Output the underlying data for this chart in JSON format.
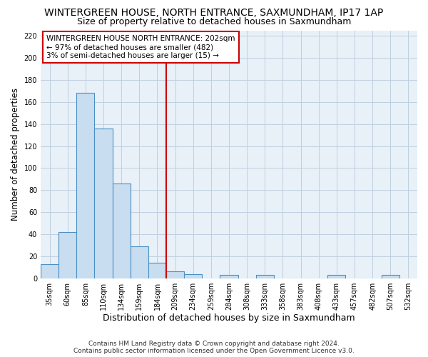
{
  "title": "WINTERGREEN HOUSE, NORTH ENTRANCE, SAXMUNDHAM, IP17 1AP",
  "subtitle": "Size of property relative to detached houses in Saxmundham",
  "xlabel": "Distribution of detached houses by size in Saxmundham",
  "ylabel": "Number of detached properties",
  "categories": [
    "35sqm",
    "60sqm",
    "85sqm",
    "110sqm",
    "134sqm",
    "159sqm",
    "184sqm",
    "209sqm",
    "234sqm",
    "259sqm",
    "284sqm",
    "308sqm",
    "333sqm",
    "358sqm",
    "383sqm",
    "408sqm",
    "433sqm",
    "457sqm",
    "482sqm",
    "507sqm",
    "532sqm"
  ],
  "values": [
    13,
    42,
    168,
    136,
    86,
    29,
    14,
    6,
    4,
    0,
    3,
    0,
    3,
    0,
    0,
    0,
    3,
    0,
    0,
    3,
    0
  ],
  "bar_face_color": "#c8ddf0",
  "bar_edge_color": "#4a90c4",
  "grid_color": "#c0cfe0",
  "bg_color": "#e8f0f8",
  "vline_color": "#cc0000",
  "vline_x": 7,
  "annotation_title": "WINTERGREEN HOUSE NORTH ENTRANCE: 202sqm",
  "annotation_line1": "← 97% of detached houses are smaller (482)",
  "annotation_line2": "3% of semi-detached houses are larger (15) →",
  "annotation_box_color": "#cc0000",
  "footnote1": "Contains HM Land Registry data © Crown copyright and database right 2024.",
  "footnote2": "Contains public sector information licensed under the Open Government Licence v3.0.",
  "ylim_max": 225,
  "yticks": [
    0,
    20,
    40,
    60,
    80,
    100,
    120,
    140,
    160,
    180,
    200,
    220
  ],
  "title_fontsize": 10,
  "subtitle_fontsize": 9,
  "ylabel_fontsize": 8.5,
  "xlabel_fontsize": 9,
  "tick_fontsize": 7,
  "annot_fontsize": 7.5,
  "footnote_fontsize": 6.5
}
